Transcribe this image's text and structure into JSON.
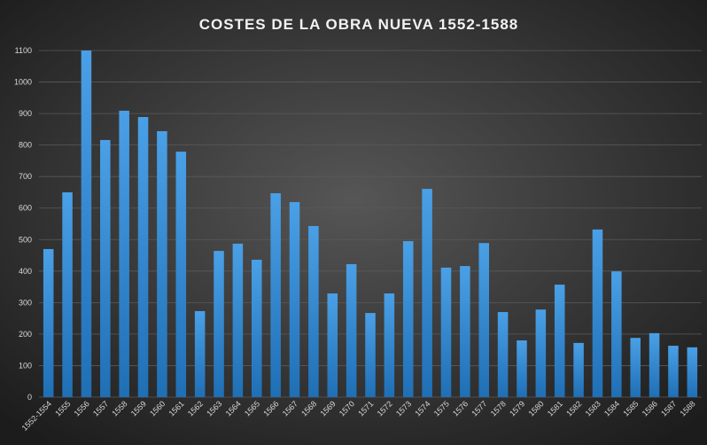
{
  "chart_data": {
    "type": "bar",
    "title": "COSTES DE LA OBRA NUEVA 1552-1588",
    "categories": [
      "1552-1554",
      "1555",
      "1556",
      "1557",
      "1558",
      "1559",
      "1560",
      "1561",
      "1562",
      "1563",
      "1564",
      "1565",
      "1566",
      "1567",
      "1568",
      "1569",
      "1570",
      "1571",
      "1572",
      "1573",
      "1574",
      "1575",
      "1576",
      "1577",
      "1578",
      "1579",
      "1580",
      "1581",
      "1582",
      "1583",
      "1584",
      "1585",
      "1586",
      "1587",
      "1588"
    ],
    "values": [
      470,
      650,
      1100,
      816,
      909,
      889,
      844,
      779,
      273,
      464,
      487,
      436,
      647,
      619,
      543,
      329,
      422,
      267,
      329,
      495,
      661,
      411,
      416,
      489,
      270,
      180,
      278,
      357,
      172,
      532,
      399,
      188,
      203,
      163,
      158
    ],
    "color": "#3a8fd6",
    "ylim": [
      0,
      1100
    ],
    "yticks": [
      0,
      100,
      200,
      300,
      400,
      500,
      600,
      700,
      800,
      900,
      1000,
      1100
    ],
    "grid": true
  }
}
